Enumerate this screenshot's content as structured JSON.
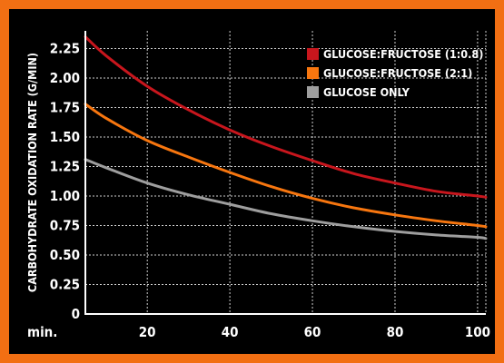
{
  "chart_data": {
    "type": "line",
    "ylabel": "CARBOHYDRATE OXIDATION RATE (G/MIN)",
    "x_unit_label": "min.",
    "xlim": [
      5,
      102
    ],
    "ylim": [
      0,
      2.4
    ],
    "x_ticks": [
      {
        "value": 20,
        "label": "20"
      },
      {
        "value": 40,
        "label": "40"
      },
      {
        "value": 60,
        "label": "60"
      },
      {
        "value": 80,
        "label": "80"
      },
      {
        "value": 100,
        "label": "100"
      }
    ],
    "y_ticks": [
      {
        "value": 0,
        "label": "0"
      },
      {
        "value": 0.25,
        "label": "0.25"
      },
      {
        "value": 0.5,
        "label": "0.50"
      },
      {
        "value": 0.75,
        "label": "0.75"
      },
      {
        "value": 1.0,
        "label": "1.00"
      },
      {
        "value": 1.25,
        "label": "1.25"
      },
      {
        "value": 1.5,
        "label": "1.50"
      },
      {
        "value": 1.75,
        "label": "1.75"
      },
      {
        "value": 2.0,
        "label": "2.00"
      },
      {
        "value": 2.25,
        "label": "2.25"
      }
    ],
    "grid": true,
    "legend_position": "top-right",
    "series": [
      {
        "name": "GLUCOSE:FRUCTOSE (1:0.8)",
        "color": "#c8161d",
        "x": [
          5,
          10,
          20,
          30,
          40,
          50,
          60,
          70,
          80,
          90,
          100,
          102
        ],
        "y": [
          2.35,
          2.19,
          1.93,
          1.73,
          1.56,
          1.42,
          1.3,
          1.19,
          1.11,
          1.04,
          1.0,
          0.99
        ]
      },
      {
        "name": "GLUCOSE:FRUCTOSE (2:1)",
        "color": "#f7760f",
        "x": [
          5,
          10,
          20,
          30,
          40,
          50,
          60,
          70,
          80,
          90,
          100,
          102
        ],
        "y": [
          1.78,
          1.66,
          1.47,
          1.33,
          1.2,
          1.08,
          0.98,
          0.9,
          0.84,
          0.79,
          0.75,
          0.74
        ]
      },
      {
        "name": "GLUCOSE ONLY",
        "color": "#9e9e9e",
        "x": [
          5,
          10,
          20,
          30,
          40,
          50,
          60,
          70,
          80,
          90,
          100,
          102
        ],
        "y": [
          1.31,
          1.24,
          1.11,
          1.01,
          0.93,
          0.85,
          0.79,
          0.74,
          0.7,
          0.67,
          0.65,
          0.64
        ]
      }
    ]
  }
}
